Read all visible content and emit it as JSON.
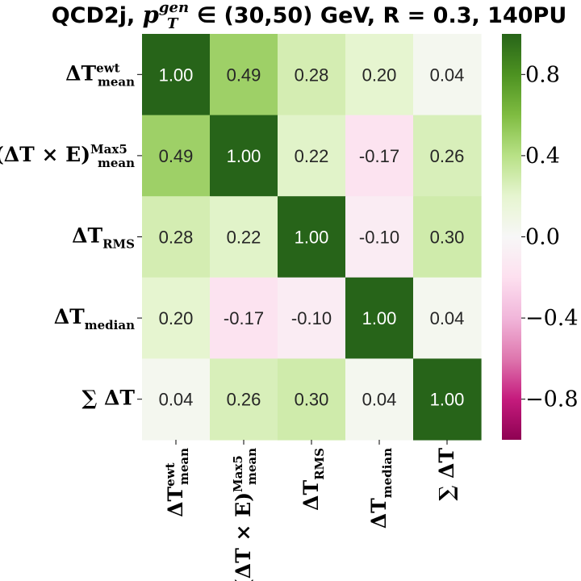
{
  "chart_data": {
    "type": "heatmap",
    "title": {
      "prefix": "QCD2j, ",
      "var": "p",
      "var_sub": "T",
      "var_sup": "gen",
      "suffix": " ∈ (30,50) GeV, R = 0.3, 140PU"
    },
    "variables": [
      {
        "name": "dT_mean_ewt",
        "pre": "",
        "main": "ΔT",
        "post": "",
        "sub": "mean",
        "sup": "ewt"
      },
      {
        "name": "dTxE_mean_max5",
        "pre": "(",
        "main": "ΔT × E",
        "post": ")",
        "sub": "mean",
        "sup": "Max5"
      },
      {
        "name": "dT_rms",
        "pre": "",
        "main": "ΔT",
        "post": "",
        "sub": "RMS",
        "sup": ""
      },
      {
        "name": "dT_median",
        "pre": "",
        "main": "ΔT",
        "post": "",
        "sub": "median",
        "sup": ""
      },
      {
        "name": "sum_dT",
        "pre": "∑",
        "main": " ΔT",
        "post": "",
        "sub": "",
        "sup": ""
      }
    ],
    "matrix": [
      [
        1.0,
        0.49,
        0.28,
        0.2,
        0.04
      ],
      [
        0.49,
        1.0,
        0.22,
        -0.17,
        0.26
      ],
      [
        0.28,
        0.22,
        1.0,
        -0.1,
        0.3
      ],
      [
        0.2,
        -0.17,
        -0.1,
        1.0,
        0.04
      ],
      [
        0.04,
        0.26,
        0.3,
        0.04,
        1.0
      ]
    ],
    "value_range": [
      -1.0,
      1.0
    ],
    "colormap": "PiYG",
    "colorbar_ticks": [
      {
        "value": 0.8,
        "label": "0.8"
      },
      {
        "value": 0.4,
        "label": "0.4"
      },
      {
        "value": 0.0,
        "label": "0.0"
      },
      {
        "value": -0.4,
        "label": "−0.4"
      },
      {
        "value": -0.8,
        "label": "−0.8"
      }
    ]
  }
}
